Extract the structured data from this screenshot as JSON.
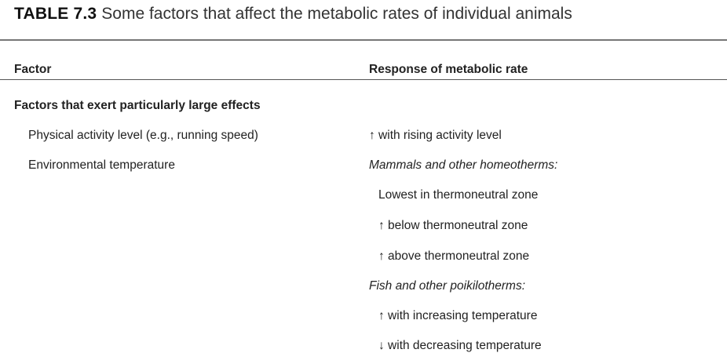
{
  "title": {
    "label": "TABLE 7.3",
    "text": "Some factors that affect the metabolic rates of individual animals"
  },
  "header": {
    "col1": "Factor",
    "col2": "Response of metabolic rate"
  },
  "section": "Factors that exert particularly large effects",
  "rows": [
    {
      "factor": "Physical activity level (e.g., running speed)",
      "response": "↑ with rising activity level"
    },
    {
      "factor": "Environmental temperature",
      "response": "Mammals and other homeotherms:"
    }
  ],
  "continuation": [
    "Lowest in thermoneutral zone",
    "↑  below thermoneutral zone",
    "↑  above thermoneutral zone",
    "Fish and other poikilotherms:",
    "↑ with increasing temperature",
    "↓ with decreasing temperature"
  ]
}
